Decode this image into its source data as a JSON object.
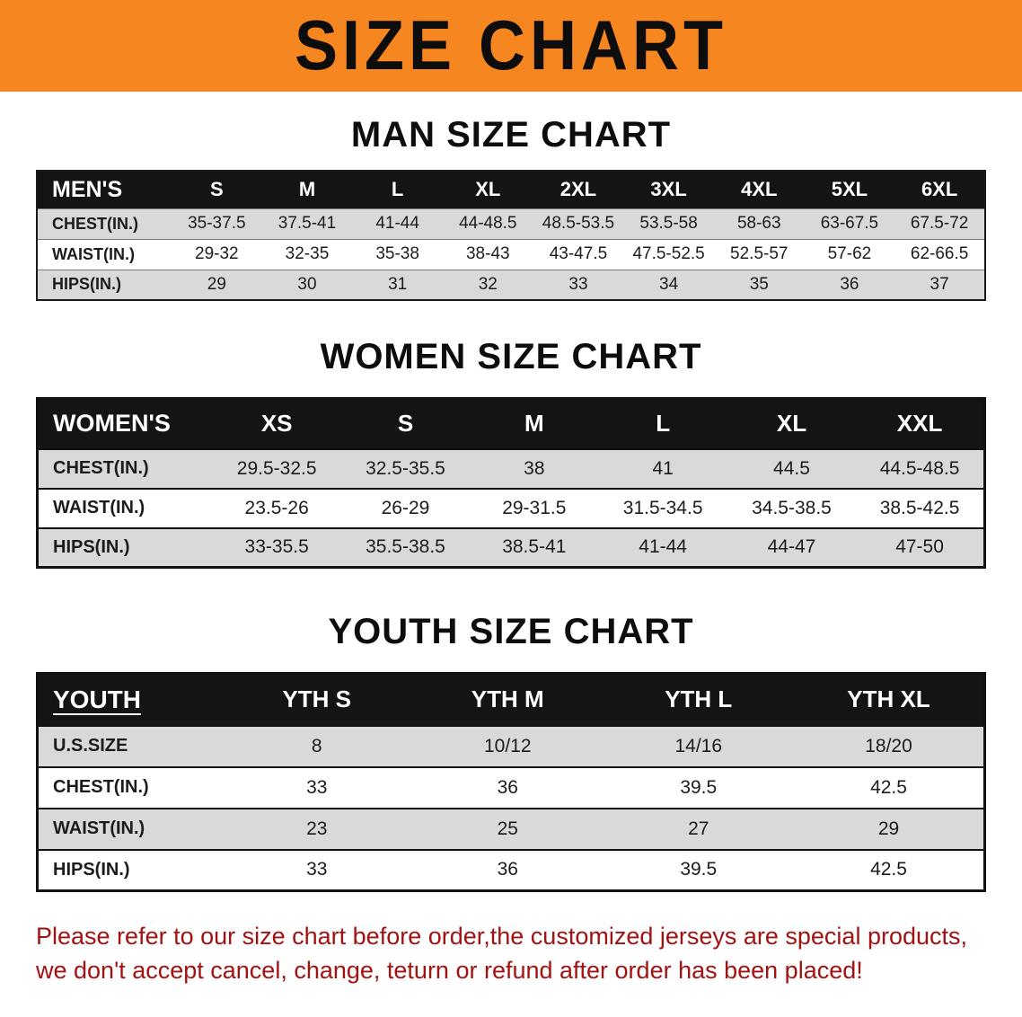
{
  "banner": {
    "title": "SIZE CHART",
    "bg_color": "#F6861F",
    "text_color": "#0D0D0D"
  },
  "sections": [
    {
      "heading": "MAN SIZE CHART",
      "table": {
        "header": [
          "MEN'S",
          "S",
          "M",
          "L",
          "XL",
          "2XL",
          "3XL",
          "4XL",
          "5XL",
          "6XL"
        ],
        "rows": [
          [
            "CHEST(IN.)",
            "35-37.5",
            "37.5-41",
            "41-44",
            "44-48.5",
            "48.5-53.5",
            "53.5-58",
            "58-63",
            "63-67.5",
            "67.5-72"
          ],
          [
            "WAIST(IN.)",
            "29-32",
            "32-35",
            "35-38",
            "38-43",
            "43-47.5",
            "47.5-52.5",
            "52.5-57",
            "57-62",
            "62-66.5"
          ],
          [
            "HIPS(IN.)",
            "29",
            "30",
            "31",
            "32",
            "33",
            "34",
            "35",
            "36",
            "37"
          ]
        ]
      }
    },
    {
      "heading": "WOMEN SIZE CHART",
      "table": {
        "header": [
          "WOMEN'S",
          "XS",
          "S",
          "M",
          "L",
          "XL",
          "XXL"
        ],
        "rows": [
          [
            "CHEST(IN.)",
            "29.5-32.5",
            "32.5-35.5",
            "38",
            "41",
            "44.5",
            "44.5-48.5"
          ],
          [
            "WAIST(IN.)",
            "23.5-26",
            "26-29",
            "29-31.5",
            "31.5-34.5",
            "34.5-38.5",
            "38.5-42.5"
          ],
          [
            "HIPS(IN.)",
            "33-35.5",
            "35.5-38.5",
            "38.5-41",
            "41-44",
            "44-47",
            "47-50"
          ]
        ]
      }
    },
    {
      "heading": "YOUTH SIZE CHART",
      "table": {
        "header": [
          "YOUTH",
          "YTH S",
          "YTH M",
          "YTH L",
          "YTH XL"
        ],
        "rows": [
          [
            "U.S.SIZE",
            "8",
            "10/12",
            "14/16",
            "18/20"
          ],
          [
            "CHEST(IN.)",
            "33",
            "36",
            "39.5",
            "42.5"
          ],
          [
            "WAIST(IN.)",
            "23",
            "25",
            "27",
            "29"
          ],
          [
            "HIPS(IN.)",
            "33",
            "36",
            "39.5",
            "42.5"
          ]
        ]
      }
    }
  ],
  "disclaimer": {
    "line1": "Please refer to our size chart before order,the customized jerseys are special products,",
    "line2": "we don't accept cancel, change, teturn or refund after order has been placed!",
    "text_color": "#A31212"
  },
  "colors": {
    "table_header_bg": "#141414",
    "row_alt_bg": "#D9D9D9",
    "banner_orange": "#F6861F"
  }
}
